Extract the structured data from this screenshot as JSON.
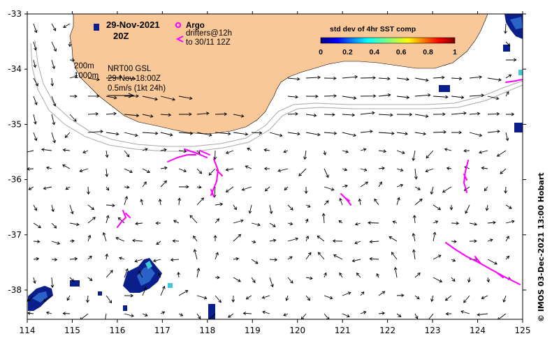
{
  "map": {
    "date_title": "29-Nov-2021",
    "time_title": "20Z",
    "argo_label": "Argo",
    "drifters_label_1": "drifters@12h",
    "drifters_label_2": "to 30/11 12Z",
    "depth_label_1": "200m",
    "depth_label_2": "1000m",
    "product_label_1": "NRT00 GSL",
    "product_label_2": "29-Nov 18:00Z",
    "product_label_3": "0.5m/s (1kt 24h)",
    "colorbar_title": "std dev of 4hr SST comp",
    "colorbar_ticks": [
      "0",
      "0.2",
      "0.4",
      "0.6",
      "0.8",
      "1"
    ],
    "credit": "©  IMOS 03-Dec-2021 13:00 Hobart",
    "x_ticks": [
      "114",
      "115",
      "116",
      "117",
      "118",
      "119",
      "120",
      "121",
      "122",
      "123",
      "124",
      "125"
    ],
    "y_ticks": [
      "-33",
      "-34",
      "-35",
      "-36",
      "-37",
      "-38"
    ],
    "colors": {
      "land": "#f8c898",
      "drifter": "#ff00ff",
      "arrow": "#000000",
      "isobath": "#a8a8a8",
      "sst_low": "#0a1e8c",
      "sst_mid": "#2b62c8"
    }
  }
}
